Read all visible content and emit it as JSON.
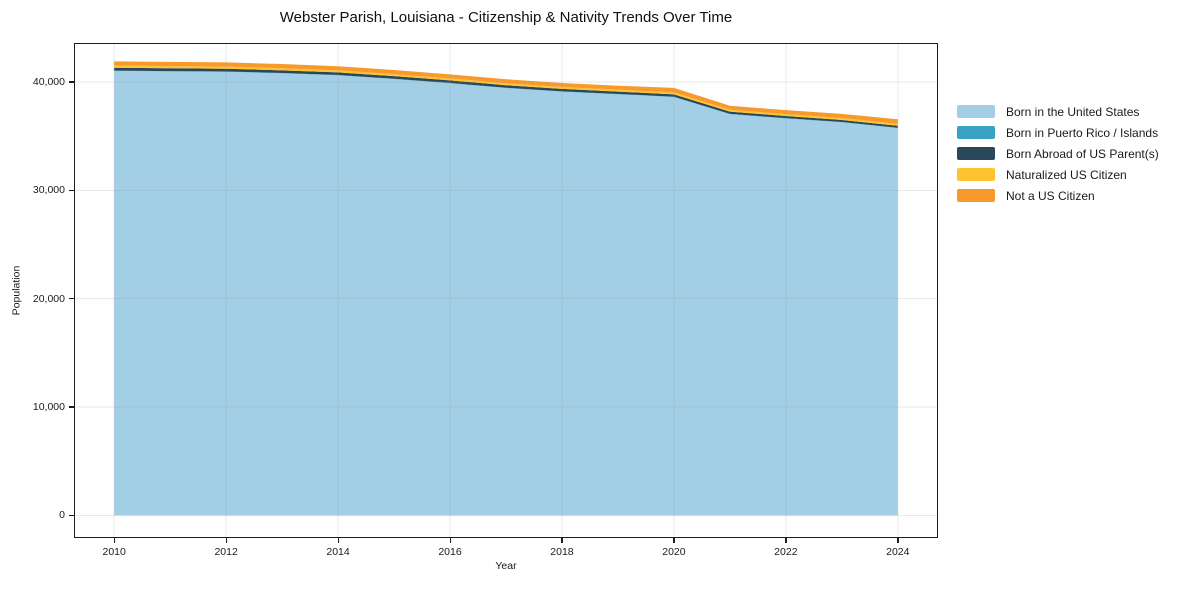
{
  "chart_data": {
    "type": "area",
    "stacked": true,
    "title": "Webster Parish, Louisiana - Citizenship & Nativity Trends Over Time",
    "xlabel": "Year",
    "ylabel": "Population",
    "x": [
      2010,
      2011,
      2012,
      2013,
      2014,
      2015,
      2016,
      2017,
      2018,
      2019,
      2020,
      2021,
      2022,
      2023,
      2024
    ],
    "series": [
      {
        "name": "Born in the United States",
        "color": "#a2cfe5",
        "values": [
          41020,
          40975,
          40940,
          40795,
          40610,
          40265,
          39880,
          39440,
          39105,
          38865,
          38610,
          37025,
          36630,
          36280,
          35740
        ]
      },
      {
        "name": "Born in Puerto Rico / Islands",
        "color": "#39a2c2",
        "values": [
          25,
          25,
          25,
          25,
          25,
          25,
          25,
          25,
          25,
          25,
          25,
          25,
          25,
          25,
          25
        ]
      },
      {
        "name": "Born Abroad of US Parent(s)",
        "color": "#2a485c",
        "values": [
          265,
          260,
          255,
          250,
          245,
          240,
          235,
          230,
          225,
          220,
          215,
          205,
          195,
          185,
          185
        ]
      },
      {
        "name": "Naturalized US Citizen",
        "color": "#fdc330",
        "values": [
          200,
          200,
          195,
          195,
          190,
          190,
          185,
          185,
          180,
          180,
          180,
          175,
          175,
          175,
          185
        ]
      },
      {
        "name": "Not a US Citizen",
        "color": "#f8992b",
        "values": [
          390,
          390,
          385,
          385,
          380,
          380,
          375,
          370,
          365,
          360,
          420,
          370,
          375,
          385,
          415
        ]
      }
    ],
    "xlim": [
      2009.3,
      2024.7
    ],
    "ylim": [
      -2000,
      43500
    ],
    "xticks": [
      2010,
      2012,
      2014,
      2016,
      2018,
      2020,
      2022,
      2024
    ],
    "xtick_labels": [
      "2010",
      "2012",
      "2014",
      "2016",
      "2018",
      "2020",
      "2022",
      "2024"
    ],
    "yticks": [
      0,
      10000,
      20000,
      30000,
      40000
    ],
    "ytick_labels": [
      "0",
      "10,000",
      "20,000",
      "30,000",
      "40,000"
    ],
    "grid": true,
    "grid_color": "#999999",
    "grid_opacity": 0.22,
    "legend_position": "right",
    "spine_color": "#1c1c1c",
    "background": "#ffffff"
  }
}
